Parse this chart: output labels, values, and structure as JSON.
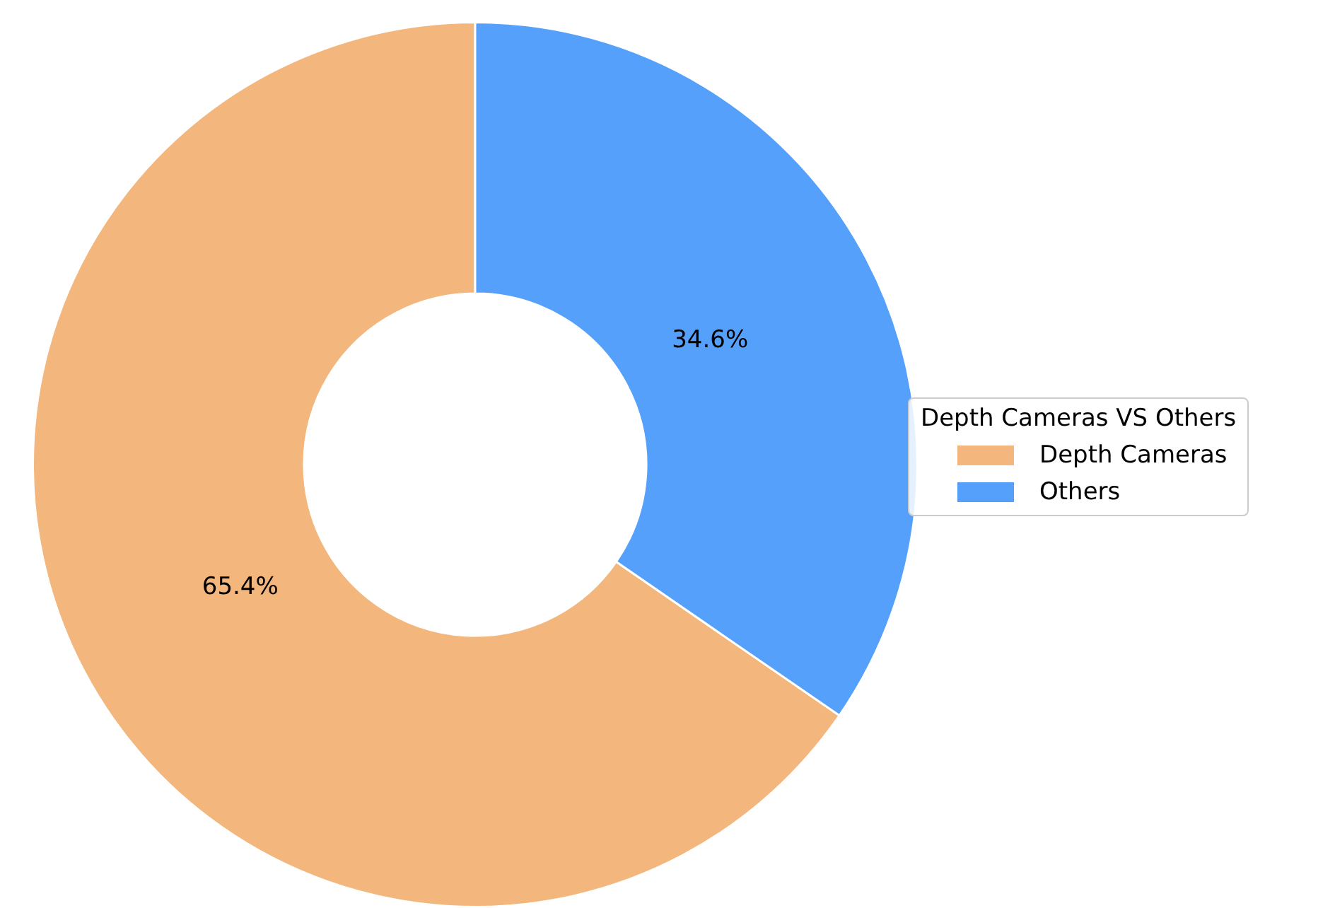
{
  "chart_data": {
    "type": "donut",
    "legend_title": "Depth Cameras VS Others",
    "categories": [
      "Depth Cameras",
      "Others"
    ],
    "values": [
      65.4,
      34.6
    ],
    "colors": [
      "#f3b67d",
      "#55a0fb"
    ],
    "value_labels": [
      "65.4%",
      "34.6%"
    ],
    "legend": "right"
  }
}
